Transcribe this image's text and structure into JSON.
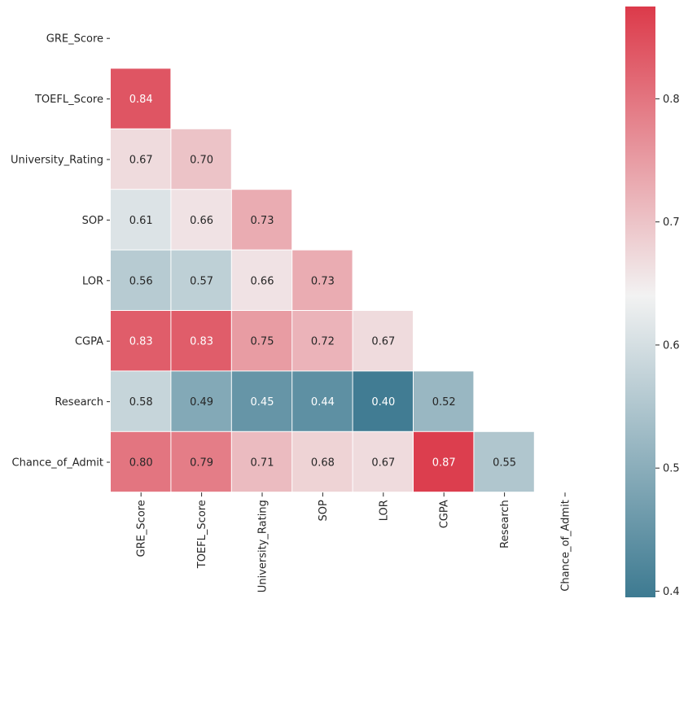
{
  "chart_data": {
    "type": "heatmap",
    "title": "",
    "xlabel": "",
    "ylabel": "",
    "variables": [
      "GRE_Score",
      "TOEFL_Score",
      "University_Rating",
      "SOP",
      "LOR",
      "CGPA",
      "Research",
      "Chance_of_Admit"
    ],
    "mask": "upper-triangle-including-diagonal",
    "values": [
      [
        null,
        null,
        null,
        null,
        null,
        null,
        null,
        null
      ],
      [
        0.84,
        null,
        null,
        null,
        null,
        null,
        null,
        null
      ],
      [
        0.67,
        0.7,
        null,
        null,
        null,
        null,
        null,
        null
      ],
      [
        0.61,
        0.66,
        0.73,
        null,
        null,
        null,
        null,
        null
      ],
      [
        0.56,
        0.57,
        0.66,
        0.73,
        null,
        null,
        null,
        null
      ],
      [
        0.83,
        0.83,
        0.75,
        0.72,
        0.67,
        null,
        null,
        null
      ],
      [
        0.58,
        0.49,
        0.45,
        0.44,
        0.4,
        0.52,
        null,
        null
      ],
      [
        0.8,
        0.79,
        0.71,
        0.68,
        0.67,
        0.87,
        0.55,
        null
      ]
    ],
    "annotation_format": "0.00",
    "colorbar": {
      "range": [
        0.395,
        0.875
      ],
      "ticks": [
        "0.4",
        "0.5",
        "0.6",
        "0.7",
        "0.8"
      ],
      "colormap": [
        "#3d7a91",
        "#f2f2f2",
        "#dc3a4a"
      ],
      "center_value": 0.64
    },
    "grid": false,
    "legend": "colorbar-right"
  }
}
